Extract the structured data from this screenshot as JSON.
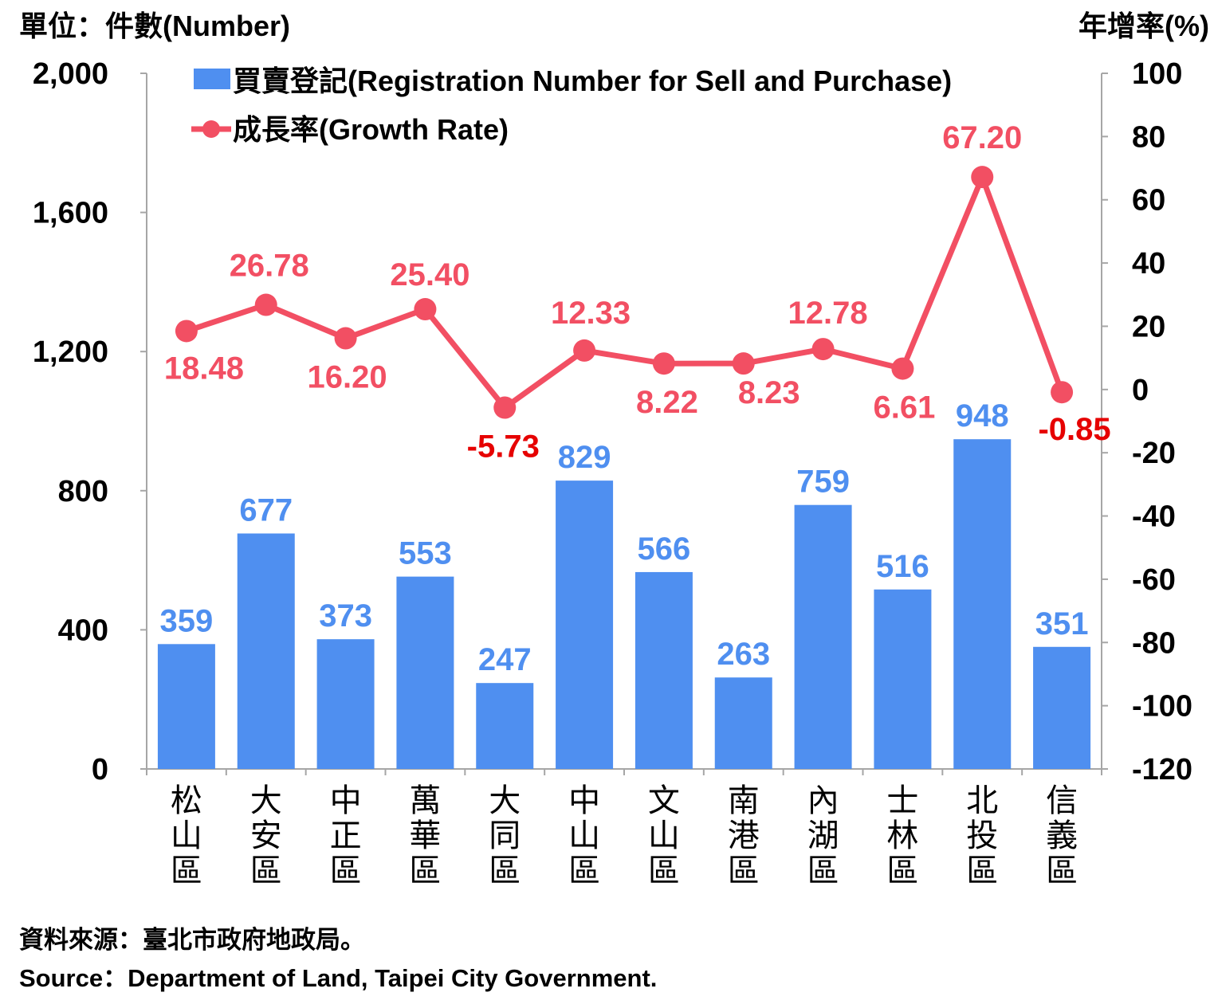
{
  "unit_left": "單位：件數(Number)",
  "unit_right": "年增率(%)",
  "source_zh": "資料來源：臺北市政府地政局。",
  "source_en": "Source：Department of Land, Taipei City Government.",
  "colors": {
    "bar": "#4f8ff0",
    "bar_label": "#4f8ff0",
    "line": "#f24f63",
    "line_label": "#f24f63",
    "negative_label": "#e60000",
    "axis": "#a6a6a6",
    "text": "#000000"
  },
  "chart_data": {
    "type": "bar",
    "title": "",
    "categories": [
      "松山區",
      "大安區",
      "中正區",
      "萬華區",
      "大同區",
      "中山區",
      "文山區",
      "南港區",
      "內湖區",
      "士林區",
      "北投區",
      "信義區"
    ],
    "series": [
      {
        "name": "買賣登記(Registration Number for Sell and Purchase)",
        "type": "bar",
        "axis": "left",
        "values": [
          359,
          677,
          373,
          553,
          247,
          829,
          566,
          263,
          759,
          516,
          948,
          351
        ]
      },
      {
        "name": "成長率(Growth Rate)",
        "type": "line",
        "axis": "right",
        "values": [
          18.48,
          26.78,
          16.2,
          25.4,
          -5.73,
          12.33,
          8.22,
          8.23,
          12.78,
          6.61,
          67.2,
          -0.85
        ],
        "labels": [
          "18.48",
          "26.78",
          "16.20",
          "25.40",
          "-5.73",
          "12.33",
          "8.22",
          "8.23",
          "12.78",
          "6.61",
          "67.20",
          "-0.85"
        ]
      }
    ],
    "y_left": {
      "min": 0,
      "max": 2000,
      "ticks": [
        0,
        400,
        800,
        1200,
        1600,
        2000
      ],
      "tick_labels": [
        "0",
        "400",
        "800",
        "1,200",
        "1,600",
        "2,000"
      ]
    },
    "y_right": {
      "min": -120,
      "max": 100,
      "ticks": [
        -120,
        -100,
        -80,
        -60,
        -40,
        -20,
        0,
        20,
        40,
        60,
        80,
        100
      ],
      "tick_labels": [
        "-120",
        "-100",
        "-80",
        "-60",
        "-40",
        "-20",
        "0",
        "20",
        "40",
        "60",
        "80",
        "100"
      ]
    },
    "grid": false,
    "legend": {
      "position": "top-left"
    }
  }
}
